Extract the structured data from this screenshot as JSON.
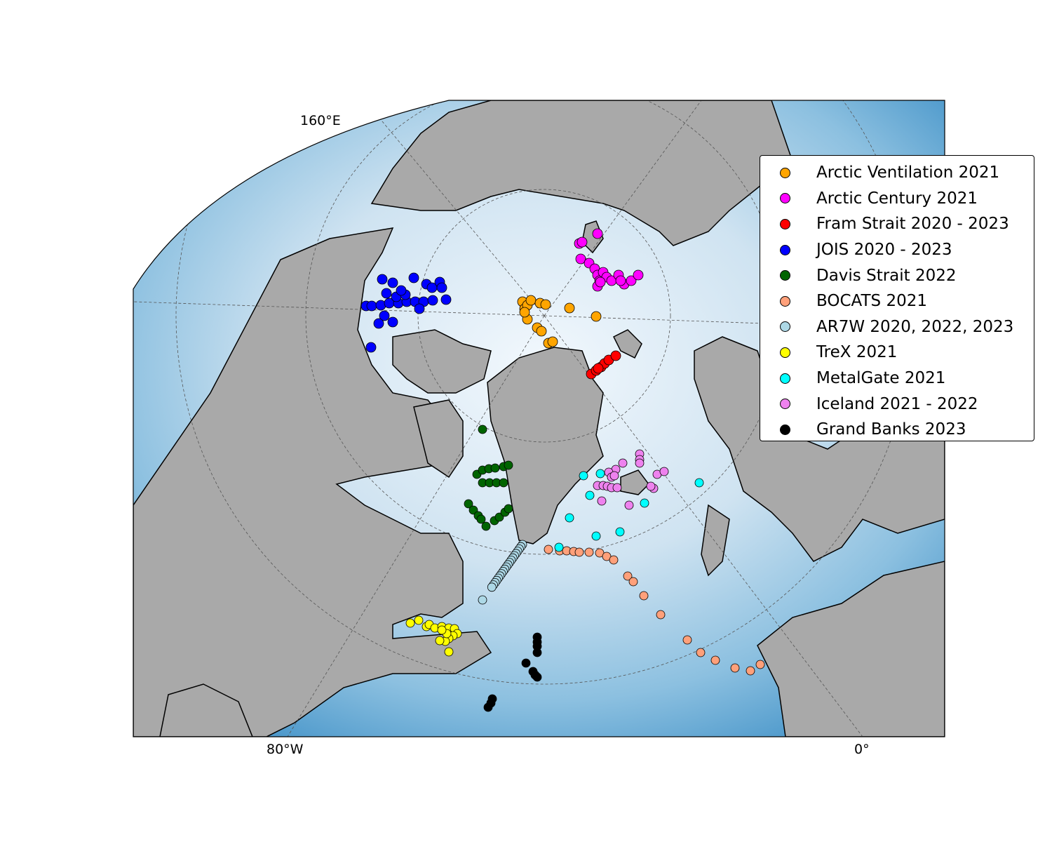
{
  "map": {
    "projection": "north-polar orthographic",
    "land_color": "#a9a9a9",
    "ocean_color": "#6baed6",
    "tick_labels": {
      "top": "160°E",
      "bottom_left": "80°W",
      "bottom_right": "0°"
    }
  },
  "legend": {
    "placement": "right",
    "entries": [
      {
        "label": "Arctic Ventilation 2021",
        "color": "#ffa500"
      },
      {
        "label": "Arctic Century 2021",
        "color": "#ff00ff"
      },
      {
        "label": "Fram Strait 2020 - 2023",
        "color": "#ff0000"
      },
      {
        "label": "JOIS 2020 - 2023",
        "color": "#0000ff"
      },
      {
        "label": "Davis Strait 2022",
        "color": "#006400"
      },
      {
        "label": "BOCATS 2021",
        "color": "#ffa07a"
      },
      {
        "label": "AR7W 2020, 2022, 2023",
        "color": "#add8e6"
      },
      {
        "label": "TreX 2021",
        "color": "#ffff00"
      },
      {
        "label": "MetalGate 2021",
        "color": "#00ffff"
      },
      {
        "label": "Iceland 2021 - 2022",
        "color": "#ee82ee"
      },
      {
        "label": "Grand Banks 2023",
        "color": "#000000"
      }
    ]
  }
}
